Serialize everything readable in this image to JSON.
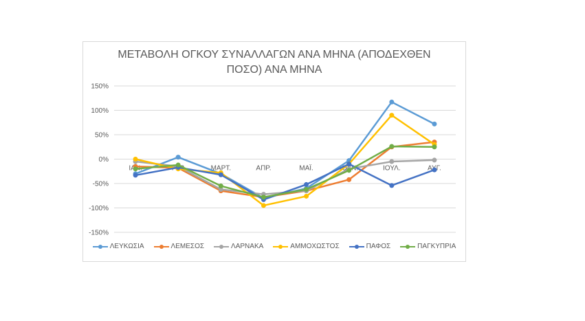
{
  "chart_data": {
    "type": "line",
    "title": "ΜΕΤΑΒΟΛΗ ΟΓΚΟΥ ΣΥΝΑΛΛΑΓΩΝ ΑΝΑ ΜΗΝΑ (ΑΠΟΔΕΧΘΕΝ ΠΟΣΟ) ΑΝΑ ΜΗΝΑ",
    "title_lines": [
      "ΜΕΤΑΒΟΛΗ ΟΓΚΟΥ ΣΥΝΑΛΛΑΓΩΝ ΑΝΑ ΜΗΝΑ (ΑΠΟΔΕΧΘΕΝ",
      "ΠΟΣΟ) ΑΝΑ ΜΗΝΑ"
    ],
    "categories": [
      "ΙΑΝ.",
      "ΦΕΒ.",
      "ΜΑΡΤ.",
      "ΑΠΡ.",
      "ΜΑΪ.",
      "ΙΟΥΝ.",
      "ΙΟΥΛ.",
      "ΑΥΓ."
    ],
    "ylim": [
      -150,
      150
    ],
    "yticks": [
      150,
      100,
      50,
      0,
      -50,
      -100,
      -150
    ],
    "ytick_labels": [
      "150%",
      "100%",
      "50%",
      "0%",
      "-50%",
      "-100%",
      "-150%"
    ],
    "grid": true,
    "legend": "bottom",
    "series": [
      {
        "name": "ΛΕΥΚΩΣΙΑ",
        "color": "#5b9bd5",
        "values": [
          -30,
          4,
          -30,
          -80,
          -60,
          -3,
          117,
          72
        ]
      },
      {
        "name": "ΛΕΜΕΣΟΣ",
        "color": "#ed7d31",
        "values": [
          -15,
          -18,
          -65,
          -78,
          -65,
          -42,
          25,
          35
        ]
      },
      {
        "name": "ΛΑΡΝΑΚΑ",
        "color": "#a5a5a5",
        "values": [
          -5,
          -15,
          -62,
          -72,
          -65,
          -20,
          -5,
          -2
        ]
      },
      {
        "name": "ΑΜΜΟΧΩΣΤΟΣ",
        "color": "#ffc000",
        "values": [
          0,
          -20,
          -28,
          -95,
          -76,
          -10,
          90,
          30
        ]
      },
      {
        "name": "ΠΑΦΟΣ",
        "color": "#4472c4",
        "values": [
          -33,
          -17,
          -32,
          -83,
          -52,
          -10,
          -54,
          -22
        ]
      },
      {
        "name": "ΠΑΓΚΥΠΡΙΑ",
        "color": "#70ad47",
        "values": [
          -20,
          -12,
          -55,
          -78,
          -62,
          -23,
          26,
          25
        ]
      }
    ]
  }
}
